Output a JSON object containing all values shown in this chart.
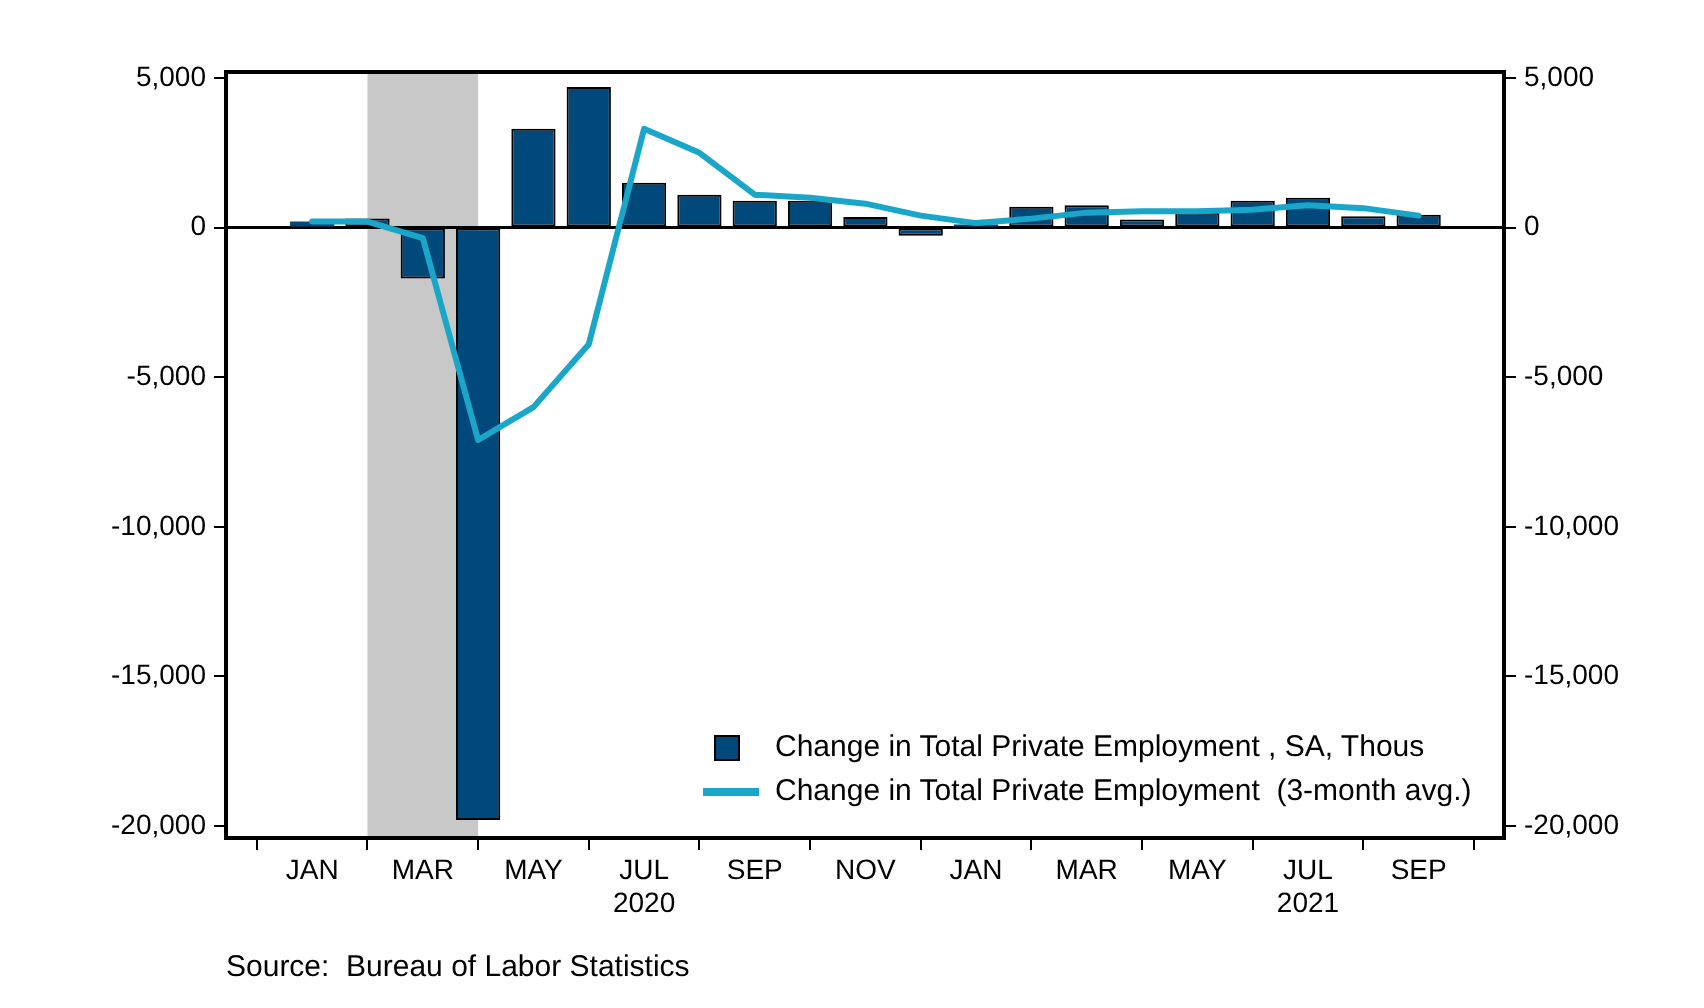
{
  "chart_data": {
    "type": "bar",
    "x": [
      "2020-01",
      "2020-02",
      "2020-03",
      "2020-04",
      "2020-05",
      "2020-06",
      "2020-07",
      "2020-08",
      "2020-09",
      "2020-10",
      "2020-11",
      "2020-12",
      "2021-01",
      "2021-02",
      "2021-03",
      "2021-04",
      "2021-05",
      "2021-06",
      "2021-07",
      "2021-08",
      "2021-09"
    ],
    "series": [
      {
        "name": "Change in Total Private Employment , SA, Thous",
        "color": "#00497a",
        "values": [
          200,
          300,
          -1700,
          -19800,
          3300,
          4700,
          1500,
          1100,
          900,
          900,
          350,
          -270,
          100,
          700,
          750,
          270,
          500,
          900,
          1000,
          380,
          430
        ]
      },
      {
        "name": "Change in Total Private Employment  (3-month avg.)",
        "type": "line",
        "color": "#1aa6c8",
        "values": [
          200,
          200,
          -350,
          -7100,
          -6000,
          -3900,
          3300,
          2500,
          1100,
          1000,
          800,
          400,
          150,
          300,
          500,
          550,
          550,
          600,
          750,
          650,
          400
        ]
      }
    ],
    "xlim": [
      "2019-12-16",
      "2021-09-16"
    ],
    "xticks": [
      {
        "value": "2020-01",
        "label": "JAN"
      },
      {
        "value": "2020-03",
        "label": "MAR"
      },
      {
        "value": "2020-05",
        "label": "MAY"
      },
      {
        "value": "2020-07",
        "label": "JUL\n2020"
      },
      {
        "value": "2020-09",
        "label": "SEP"
      },
      {
        "value": "2020-11",
        "label": "NOV"
      },
      {
        "value": "2021-01",
        "label": "JAN"
      },
      {
        "value": "2021-03",
        "label": "MAR"
      },
      {
        "value": "2021-05",
        "label": "MAY"
      },
      {
        "value": "2021-07",
        "label": "JUL\n2021"
      },
      {
        "value": "2021-09",
        "label": "SEP"
      }
    ],
    "ylim": [
      -20400,
      5200
    ],
    "yticks": [
      {
        "value": 5000,
        "label": "5,000"
      },
      {
        "value": 0,
        "label": "0"
      },
      {
        "value": -5000,
        "label": "-5,000"
      },
      {
        "value": -10000,
        "label": "-10,000"
      },
      {
        "value": -15000,
        "label": "-15,000"
      },
      {
        "value": -20000,
        "label": "-20,000"
      }
    ],
    "y2lim": [
      -20400,
      5200
    ],
    "y2ticks": [
      {
        "value": 5000,
        "label": "5,000"
      },
      {
        "value": 0,
        "label": "0"
      },
      {
        "value": -5000,
        "label": "-5,000"
      },
      {
        "value": -10000,
        "label": "-10,000"
      },
      {
        "value": -15000,
        "label": "-15,000"
      },
      {
        "value": -20000,
        "label": "-20,000"
      }
    ],
    "ref_lines": [
      {
        "axis": "y",
        "value": 0,
        "color": "#000000"
      }
    ],
    "bands": [
      {
        "axis": "x",
        "from": "2020-02",
        "to": "2020-04",
        "color": "#c8c8c8"
      }
    ],
    "grid": false,
    "legend": "bottom right",
    "marker": "none",
    "line_style": "solid",
    "annotations": [
      "Source:  Bureau of Labor Statistics"
    ]
  }
}
